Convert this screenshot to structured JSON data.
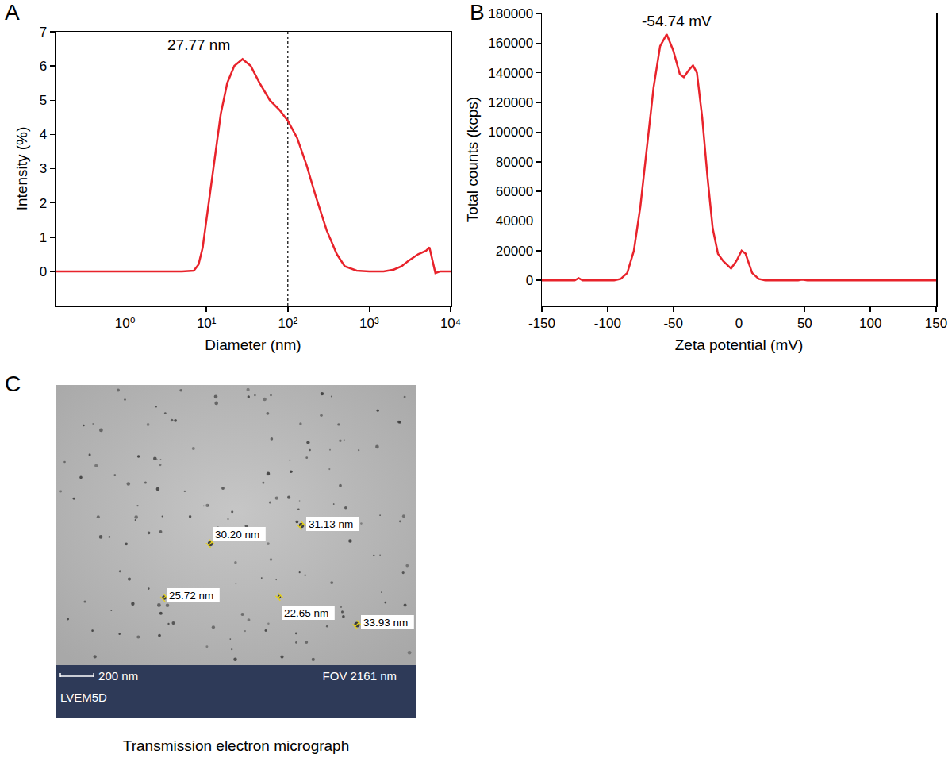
{
  "chart_data": [
    {
      "panel": "A",
      "type": "line",
      "x_label": "Diameter (nm)",
      "y_label": "Intensity (%)",
      "log": "x",
      "grid": false,
      "color": "#e8232b",
      "xlim": [
        0.14,
        10000
      ],
      "xticks": [
        {
          "value": 1,
          "label": "10⁰"
        },
        {
          "value": 10,
          "label": "10¹"
        },
        {
          "value": 100,
          "label": "10²"
        },
        {
          "value": 1000,
          "label": "10³"
        },
        {
          "value": 10000,
          "label": "10⁴"
        }
      ],
      "ylim": [
        -1,
        7
      ],
      "yticks": [
        0,
        1,
        2,
        3,
        4,
        5,
        6,
        7
      ],
      "x": [
        0.14,
        5,
        7,
        8,
        9,
        10,
        12,
        15,
        18,
        22,
        27.77,
        35,
        45,
        60,
        80,
        100,
        130,
        170,
        220,
        300,
        400,
        500,
        700,
        1000,
        1500,
        2000,
        2500,
        3000,
        4000,
        5000,
        5500,
        6000,
        6500,
        7500,
        10000
      ],
      "values": [
        0,
        0,
        0.02,
        0.2,
        0.7,
        1.5,
        3.0,
        4.6,
        5.5,
        6.0,
        6.2,
        6.0,
        5.5,
        5.0,
        4.7,
        4.4,
        3.9,
        3.1,
        2.2,
        1.2,
        0.5,
        0.15,
        0.02,
        0,
        0,
        0.05,
        0.15,
        0.3,
        0.5,
        0.6,
        0.7,
        0.3,
        -0.05,
        0,
        0
      ],
      "reference_line_x": 100,
      "annotations": [
        {
          "text": "27.77 nm",
          "x": 27.77,
          "y": 6.2
        }
      ]
    },
    {
      "panel": "B",
      "type": "line",
      "x_label": "Zeta potential (mV)",
      "y_label": "Total counts (kcps)",
      "grid": false,
      "color": "#e8232b",
      "xlim": [
        -150,
        150
      ],
      "xticks": [
        -150,
        -100,
        -50,
        0,
        50,
        100,
        150
      ],
      "ylim": [
        -17000,
        180000
      ],
      "yticks": [
        0,
        20000,
        40000,
        60000,
        80000,
        100000,
        120000,
        140000,
        160000,
        180000
      ],
      "x": [
        -150,
        -125,
        -122,
        -119,
        -95,
        -90,
        -85,
        -80,
        -75,
        -70,
        -65,
        -60,
        -55,
        -50,
        -45,
        -42,
        -38,
        -35,
        -32,
        -28,
        -24,
        -20,
        -16,
        -12,
        -6,
        -2,
        2,
        5,
        10,
        15,
        20,
        45,
        48,
        52,
        150
      ],
      "values": [
        0,
        0,
        1500,
        0,
        0,
        1000,
        5000,
        20000,
        50000,
        90000,
        130000,
        158000,
        166000,
        155000,
        139000,
        137000,
        142000,
        145000,
        140000,
        110000,
        70000,
        35000,
        18000,
        13000,
        8000,
        13000,
        20000,
        18000,
        5000,
        1000,
        0,
        0,
        500,
        0,
        0
      ],
      "annotations": [
        {
          "text": "-54.74 mV",
          "x": -54.74,
          "y": 166000
        }
      ]
    }
  ],
  "image_panel": {
    "panel": "C",
    "caption": "Transmission electron micrograph",
    "scale_bar": {
      "value": 200,
      "label": "200 nm"
    },
    "field_of_view": {
      "value": 2161,
      "label": "FOV 2161 nm"
    },
    "instrument": "LVEM5D",
    "measurements": [
      {
        "value": 30.2,
        "label": "30.20 nm"
      },
      {
        "value": 31.13,
        "label": "31.13 nm"
      },
      {
        "value": 25.72,
        "label": "25.72 nm"
      },
      {
        "value": 22.65,
        "label": "22.65 nm"
      },
      {
        "value": 33.93,
        "label": "33.93 nm"
      }
    ]
  }
}
